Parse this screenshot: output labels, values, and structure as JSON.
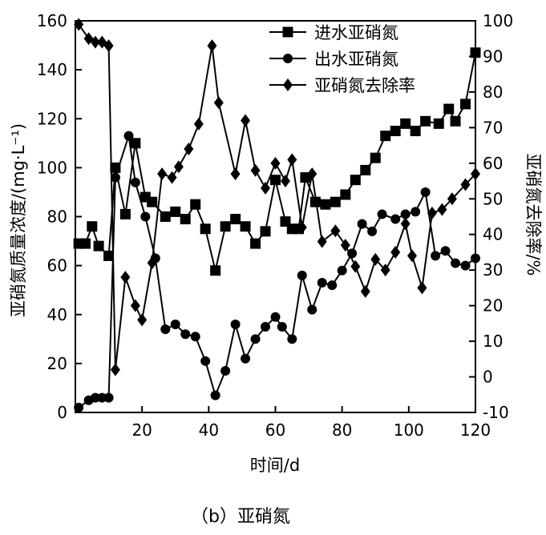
{
  "caption": "（b）亚硝氮",
  "chart_data": {
    "type": "line",
    "xlabel": "时间/d",
    "ylabel_left": "亚硝氮质量浓度/(mg·L⁻¹)",
    "ylabel_right": "亚硝氮去除率/%",
    "xlim": [
      0,
      120
    ],
    "ylim_left": [
      0,
      160
    ],
    "ylim_right": [
      -10,
      100
    ],
    "x_ticks": [
      "20",
      "40",
      "60",
      "80",
      "100",
      "120"
    ],
    "y_ticks_left": [
      "0",
      "20",
      "40",
      "60",
      "80",
      "100",
      "120",
      "140",
      "160"
    ],
    "y_ticks_right": [
      "-10",
      "0",
      "10",
      "20",
      "30",
      "40",
      "50",
      "60",
      "70",
      "80",
      "90",
      "100"
    ],
    "grid": false,
    "legend_position": "top-right",
    "series": [
      {
        "name": "进水亚硝氮",
        "marker": "square",
        "axis": "left",
        "points": [
          [
            1,
            69
          ],
          [
            3,
            69
          ],
          [
            5,
            76
          ],
          [
            7,
            68
          ],
          [
            10,
            64
          ],
          [
            12,
            100
          ],
          [
            15,
            81
          ],
          [
            18,
            110
          ],
          [
            21,
            88
          ],
          [
            23,
            86
          ],
          [
            27,
            80
          ],
          [
            30,
            82
          ],
          [
            33,
            79
          ],
          [
            36,
            85
          ],
          [
            39,
            75
          ],
          [
            42,
            58
          ],
          [
            45,
            76
          ],
          [
            48,
            79
          ],
          [
            51,
            76
          ],
          [
            54,
            69
          ],
          [
            57,
            74
          ],
          [
            60,
            95
          ],
          [
            63,
            78
          ],
          [
            65,
            75
          ],
          [
            67,
            75
          ],
          [
            69,
            96
          ],
          [
            72,
            86
          ],
          [
            75,
            85
          ],
          [
            78,
            86
          ],
          [
            81,
            89
          ],
          [
            84,
            95
          ],
          [
            87,
            99
          ],
          [
            90,
            104
          ],
          [
            93,
            113
          ],
          [
            96,
            115
          ],
          [
            99,
            118
          ],
          [
            102,
            115
          ],
          [
            105,
            119
          ],
          [
            109,
            118
          ],
          [
            112,
            124
          ],
          [
            114,
            119
          ],
          [
            117,
            126
          ],
          [
            120,
            147
          ]
        ]
      },
      {
        "name": "出水亚硝氮",
        "marker": "circle",
        "axis": "left",
        "points": [
          [
            1,
            2
          ],
          [
            4,
            5
          ],
          [
            6,
            6
          ],
          [
            8,
            6
          ],
          [
            10,
            6
          ],
          [
            12,
            96
          ],
          [
            16,
            113
          ],
          [
            18,
            94
          ],
          [
            21,
            80
          ],
          [
            24,
            63
          ],
          [
            27,
            34
          ],
          [
            30,
            36
          ],
          [
            33,
            32
          ],
          [
            36,
            31
          ],
          [
            39,
            21
          ],
          [
            42,
            7
          ],
          [
            45,
            17
          ],
          [
            48,
            36
          ],
          [
            51,
            22
          ],
          [
            54,
            30
          ],
          [
            57,
            35
          ],
          [
            60,
            39
          ],
          [
            62,
            35
          ],
          [
            65,
            30
          ],
          [
            68,
            56
          ],
          [
            71,
            42
          ],
          [
            74,
            53
          ],
          [
            77,
            52
          ],
          [
            80,
            58
          ],
          [
            83,
            65
          ],
          [
            86,
            77
          ],
          [
            89,
            74
          ],
          [
            92,
            81
          ],
          [
            96,
            79
          ],
          [
            99,
            81
          ],
          [
            102,
            82
          ],
          [
            105,
            90
          ],
          [
            108,
            64
          ],
          [
            111,
            66
          ],
          [
            114,
            61
          ],
          [
            117,
            60
          ],
          [
            120,
            63
          ]
        ]
      },
      {
        "name": "亚硝氮去除率",
        "marker": "diamond",
        "axis": "right",
        "points": [
          [
            1,
            99
          ],
          [
            4,
            95
          ],
          [
            6,
            94
          ],
          [
            8,
            94
          ],
          [
            10,
            93
          ],
          [
            12,
            2
          ],
          [
            15,
            28
          ],
          [
            18,
            20
          ],
          [
            20,
            16
          ],
          [
            23,
            32
          ],
          [
            26,
            57
          ],
          [
            29,
            56
          ],
          [
            31,
            59
          ],
          [
            34,
            64
          ],
          [
            37,
            71
          ],
          [
            41,
            93
          ],
          [
            43,
            77
          ],
          [
            48,
            57
          ],
          [
            51,
            72
          ],
          [
            54,
            58
          ],
          [
            57,
            53
          ],
          [
            60,
            60
          ],
          [
            63,
            55
          ],
          [
            65,
            61
          ],
          [
            68,
            42
          ],
          [
            71,
            57
          ],
          [
            74,
            38
          ],
          [
            78,
            41
          ],
          [
            81,
            37
          ],
          [
            84,
            31
          ],
          [
            87,
            24
          ],
          [
            90,
            33
          ],
          [
            93,
            30
          ],
          [
            96,
            35
          ],
          [
            99,
            43
          ],
          [
            101,
            34
          ],
          [
            104,
            25
          ],
          [
            107,
            46
          ],
          [
            110,
            47
          ],
          [
            113,
            50
          ],
          [
            117,
            54
          ],
          [
            120,
            57
          ]
        ]
      }
    ]
  }
}
